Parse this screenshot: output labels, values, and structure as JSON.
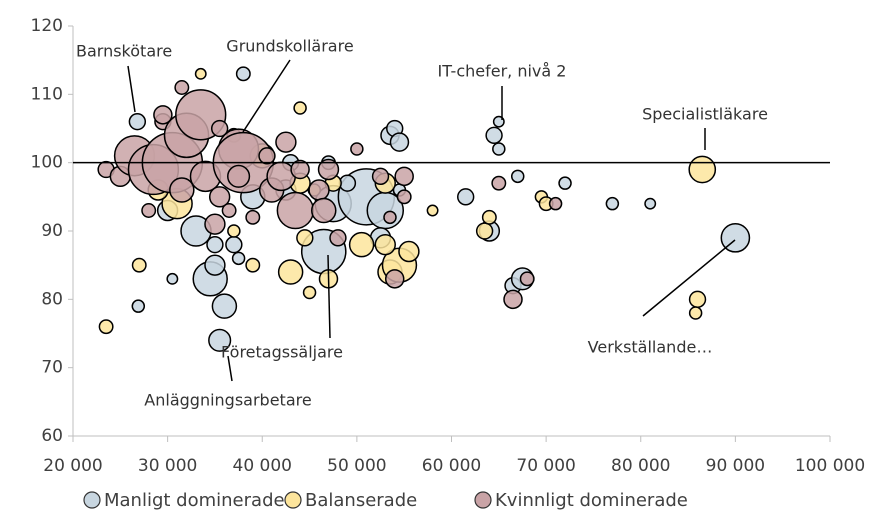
{
  "chart_data": {
    "type": "scatter",
    "xlim": [
      20000,
      100000
    ],
    "xticks": [
      {
        "value": 20000,
        "label": "20 000"
      },
      {
        "value": 30000,
        "label": "30 000"
      },
      {
        "value": 40000,
        "label": "40 000"
      },
      {
        "value": 50000,
        "label": "50 000"
      },
      {
        "value": 60000,
        "label": "60 000"
      },
      {
        "value": 70000,
        "label": "70 000"
      },
      {
        "value": 80000,
        "label": "80 000"
      },
      {
        "value": 90000,
        "label": "90 000"
      },
      {
        "value": 100000,
        "label": "100 000"
      }
    ],
    "ylim": [
      60,
      120
    ],
    "yticks": [
      60,
      70,
      80,
      90,
      100,
      110,
      120
    ],
    "reference_line": 100,
    "series": [
      {
        "name": "Manligt dominerade",
        "color": "#c8d6e0",
        "x": [
          26800,
          26900,
          30500,
          33000,
          34500,
          35500,
          36000,
          35000,
          35000,
          37000,
          38000,
          37500,
          39000,
          46500,
          47500,
          51000,
          53000,
          53500,
          54000,
          54500,
          52500,
          54500,
          61500,
          64500,
          65000,
          65000,
          64000,
          66500,
          67500,
          67000,
          72000,
          77000,
          81000,
          90000,
          49000,
          42500,
          47000,
          43000,
          30000
        ],
        "values": [
          106,
          79,
          83,
          90,
          83,
          74,
          79,
          85,
          88,
          88,
          113,
          86,
          95,
          87,
          94,
          95,
          93,
          104,
          105,
          103,
          89,
          96,
          95,
          104,
          106,
          102,
          90,
          82,
          83,
          98,
          97,
          94,
          94,
          89,
          97,
          96,
          100,
          100,
          93
        ],
        "sizes": [
          7,
          4,
          3,
          25,
          32,
          13,
          16,
          11,
          7,
          7,
          5,
          4,
          16,
          54,
          36,
          87,
          36,
          9,
          7,
          9,
          11,
          4,
          7,
          7,
          3,
          4,
          11,
          7,
          13,
          4,
          4,
          4,
          3,
          22,
          7,
          11,
          5,
          7,
          11
        ]
      },
      {
        "name": "Balanserade",
        "color": "#fde59c",
        "x": [
          23500,
          27000,
          33500,
          31000,
          29000,
          37000,
          39000,
          43000,
          44000,
          45000,
          47000,
          47500,
          45500,
          50500,
          53000,
          53500,
          54500,
          55500,
          53000,
          58000,
          63500,
          64000,
          69500,
          70000,
          86500,
          86000,
          85800,
          40000,
          44000,
          44500
        ],
        "values": [
          76,
          85,
          113,
          94,
          96,
          90,
          85,
          84,
          108,
          81,
          83,
          97,
          96,
          88,
          97,
          84,
          85,
          87,
          88,
          93,
          90,
          92,
          95,
          94,
          99,
          80,
          78,
          101,
          97,
          89
        ],
        "sizes": [
          5,
          5,
          3,
          25,
          11,
          4,
          5,
          16,
          4,
          4,
          9,
          7,
          4,
          16,
          11,
          16,
          32,
          11,
          11,
          3,
          7,
          5,
          4,
          5,
          19,
          7,
          4,
          16,
          11,
          7
        ]
      },
      {
        "name": "Kvinnligt dominerade",
        "color": "#c9a3a6",
        "x": [
          23500,
          25000,
          26500,
          28500,
          30500,
          29500,
          29500,
          31500,
          32000,
          33500,
          31500,
          34000,
          35500,
          35000,
          35500,
          37000,
          37500,
          38000,
          37500,
          36500,
          39000,
          41000,
          42000,
          42500,
          43500,
          44000,
          46000,
          46500,
          47000,
          48000,
          50000,
          52500,
          54000,
          55000,
          55000,
          53500,
          65000,
          66500,
          68000,
          71000,
          28000,
          40500
        ],
        "values": [
          99,
          98,
          101,
          99,
          100,
          106,
          107,
          111,
          104,
          107,
          96,
          98,
          95,
          91,
          105,
          104,
          102,
          100,
          98,
          93,
          92,
          96,
          98,
          103,
          93,
          99,
          96,
          93,
          99,
          89,
          102,
          98,
          83,
          98,
          95,
          92,
          97,
          80,
          83,
          94,
          93,
          101
        ],
        "sizes": [
          7,
          11,
          44,
          69,
          100,
          7,
          9,
          5,
          54,
          69,
          16,
          25,
          11,
          11,
          7,
          5,
          44,
          100,
          13,
          5,
          5,
          16,
          22,
          11,
          36,
          9,
          11,
          16,
          11,
          7,
          4,
          7,
          9,
          9,
          5,
          4,
          5,
          9,
          5,
          4,
          5,
          7
        ]
      }
    ],
    "annotations": [
      {
        "label": "Barnskötare"
      },
      {
        "label": "Grundskollärare"
      },
      {
        "label": "IT-chefer, nivå 2"
      },
      {
        "label": "Specialistläkare"
      },
      {
        "label": "Verkställande…"
      },
      {
        "label": "Företagssäljare"
      },
      {
        "label": "Anläggningsarbetare"
      }
    ]
  }
}
